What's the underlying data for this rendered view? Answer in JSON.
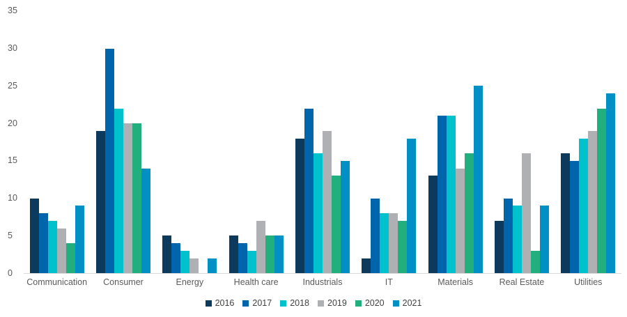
{
  "chart_data": {
    "type": "bar",
    "title": "",
    "xlabel": "",
    "ylabel": "",
    "ylim": [
      0,
      35
    ],
    "y_ticks": [
      0,
      5,
      10,
      15,
      20,
      25,
      30,
      35
    ],
    "grid": false,
    "legend_position": "bottom",
    "categories": [
      "Communication",
      "Consumer",
      "Energy",
      "Health care",
      "Industrials",
      "IT",
      "Materials",
      "Real Estate",
      "Utilities"
    ],
    "series": [
      {
        "name": "2016",
        "color": "#0b3a5d",
        "values": [
          10,
          19,
          5,
          5,
          18,
          2,
          13,
          7,
          16
        ]
      },
      {
        "name": "2017",
        "color": "#0065ab",
        "values": [
          8,
          30,
          4,
          4,
          22,
          10,
          21,
          10,
          15
        ]
      },
      {
        "name": "2018",
        "color": "#00c2cd",
        "values": [
          7,
          22,
          3,
          3,
          16,
          8,
          21,
          9,
          18
        ]
      },
      {
        "name": "2019",
        "color": "#aeb0b3",
        "values": [
          6,
          20,
          2,
          7,
          19,
          8,
          14,
          16,
          19
        ]
      },
      {
        "name": "2020",
        "color": "#21b07d",
        "values": [
          4,
          20,
          0,
          5,
          13,
          7,
          16,
          3,
          22
        ]
      },
      {
        "name": "2021",
        "color": "#0090c5",
        "values": [
          9,
          14,
          2,
          5,
          15,
          18,
          25,
          9,
          24
        ]
      }
    ],
    "colors": {
      "axis_line": "#d9d9d9",
      "tick_text": "#595959",
      "category_text": "#595959",
      "legend_text": "#404040",
      "background": "#ffffff"
    }
  }
}
